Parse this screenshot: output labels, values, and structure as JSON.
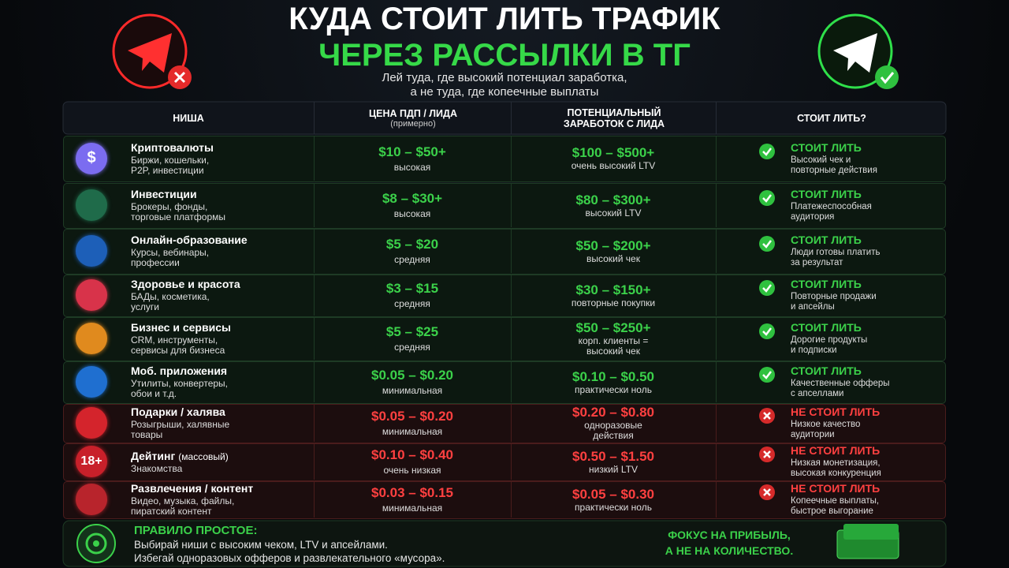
{
  "header": {
    "title_line1": "КУДА СТОИТ ЛИТЬ ТРАФИК",
    "title_line2": "ЧЕРЕЗ РАССЫЛКИ В ТГ",
    "subtitle": [
      "Лей туда, где высокий потенциал заработка,",
      "а не туда, где копеечные выплаты"
    ]
  },
  "table": {
    "columns": [
      [
        "НИША"
      ],
      [
        "ЦЕНА ПДП / ЛИДА",
        "(примерно)"
      ],
      [
        "ПОТЕНЦИАЛЬНЫЙ",
        "ЗАРАБОТОК С ЛИДА"
      ],
      [
        "СТОИТ ЛИТЬ?"
      ]
    ],
    "rows": [
      {
        "icon_text": "$",
        "icon_color": "#7b6cf0",
        "name": "Криптовалюты",
        "desc": [
          "Биржи, кошельки,",
          "P2P, инвестиции"
        ],
        "price": "$10 – $50+",
        "price_level": "высокая",
        "earning": "$100 – $500+",
        "earning_note": [
          "очень высокий LTV"
        ],
        "verdict": "СТОИТ ЛИТЬ",
        "verdict_note": [
          "Высокий чек и",
          "повторные действия"
        ],
        "color": "#3bd14a"
      },
      {
        "icon_color": "#1f6b4a",
        "name": "Инвестиции",
        "desc": [
          "Брокеры, фонды,",
          "торговые платформы"
        ],
        "price": "$8 – $30+",
        "price_level": "высокая",
        "earning": "$80 – $300+",
        "earning_note": [
          "высокий LTV"
        ],
        "verdict": "СТОИТ ЛИТЬ",
        "verdict_note": [
          "Платежеспособная",
          "аудитория"
        ],
        "color": "#3bd14a"
      },
      {
        "icon_color": "#1d5fb8",
        "name": "Онлайн-образование",
        "desc": [
          "Курсы, вебинары,",
          "профессии"
        ],
        "price": "$5 – $20",
        "price_level": "средняя",
        "earning": "$50 – $200+",
        "earning_note": [
          "высокий чек"
        ],
        "verdict": "СТОИТ ЛИТЬ",
        "verdict_note": [
          "Люди готовы платить",
          "за результат"
        ],
        "color": "#3bd14a"
      },
      {
        "icon_color": "#d8334a",
        "name": "Здоровье и красота",
        "desc": [
          "БАДы, косметика,",
          "услуги"
        ],
        "price": "$3 – $15",
        "price_level": "средняя",
        "earning": "$30 – $150+",
        "earning_note": [
          "повторные покупки"
        ],
        "verdict": "СТОИТ ЛИТЬ",
        "verdict_note": [
          "Повторные продажи",
          "и апсейлы"
        ],
        "color": "#3bd14a"
      },
      {
        "icon_color": "#e08a1e",
        "name": "Бизнес и сервисы",
        "desc": [
          "CRM, инструменты,",
          "сервисы для бизнеса"
        ],
        "price": "$5 – $25",
        "price_level": "средняя",
        "earning": "$50 – $250+",
        "earning_note": [
          "корп. клиенты =",
          "высокий чек"
        ],
        "verdict": "СТОИТ ЛИТЬ",
        "verdict_note": [
          "Дорогие продукты",
          "и подписки"
        ],
        "color": "#3bd14a"
      },
      {
        "icon_color": "#1f6fd0",
        "name": "Моб. приложения",
        "desc": [
          "Утилиты, конвертеры,",
          "обои и т.д."
        ],
        "price": "$0.05 – $0.20",
        "price_level": "минимальная",
        "earning": "$0.10 – $0.50",
        "earning_note": [
          "практически ноль"
        ],
        "verdict": "СТОИТ ЛИТЬ",
        "verdict_note": [
          "Качественные офферы",
          "с апселлами"
        ],
        "color": "#3bd14a"
      },
      {
        "icon_color": "#d4242c",
        "name": "Подарки / халява",
        "desc": [
          "Розыгрыши, халявные",
          "товары"
        ],
        "price": "$0.05 – $0.20",
        "price_level": "минимальная",
        "earning": "$0.20 – $0.80",
        "earning_note": [
          "одноразовые",
          "действия"
        ],
        "verdict": "НЕ СТОИТ ЛИТЬ",
        "verdict_note": [
          "Низкое качество",
          "аудитории"
        ],
        "color": "#ff4040"
      },
      {
        "icon_text": "18+",
        "icon_color": "#c8202a",
        "name": "Дейтинг",
        "name_note": "(массовый)",
        "desc": [
          "Знакомства"
        ],
        "price": "$0.10 – $0.40",
        "price_level": "очень низкая",
        "earning": "$0.50 – $1.50",
        "earning_note": [
          "низкий LTV"
        ],
        "verdict": "НЕ СТОИТ ЛИТЬ",
        "verdict_note": [
          "Низкая монетизация,",
          "высокая конкуренция"
        ],
        "color": "#ff4040"
      },
      {
        "icon_color": "#b8242c",
        "name": "Развлечения / контент",
        "desc": [
          "Видео, музыка, файлы,",
          "пиратский контент"
        ],
        "price": "$0.03 – $0.15",
        "price_level": "минимальная",
        "earning": "$0.05 – $0.30",
        "earning_note": [
          "практически ноль"
        ],
        "verdict": "НЕ СТОИТ ЛИТЬ",
        "verdict_note": [
          "Копеечные выплаты,",
          "быстрое выгорание"
        ],
        "color": "#ff4040"
      }
    ]
  },
  "footer": {
    "rule_title": "ПРАВИЛО ПРОСТОЕ:",
    "rule_lines": [
      "Выбирай ниши с высоким чеком, LTV и апсейлами.",
      "Избегай одноразовых офферов и развлекательного «мусора»."
    ],
    "focus": [
      "ФОКУС НА ПРИБЫЛЬ,",
      "А НЕ НА КОЛИЧЕСТВО."
    ]
  }
}
